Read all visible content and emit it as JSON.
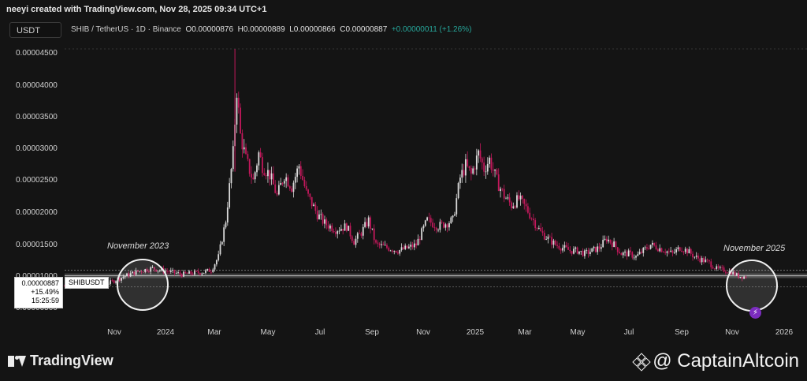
{
  "attribution": "neeyi created with TradingView.com, Nov 28, 2025 09:34 UTC+1",
  "currency_button": "USDT",
  "legend": {
    "symbol": "SHIB / TetherUS · 1D · Binance",
    "open": "O0.00000876",
    "high": "H0.00000889",
    "low": "L0.00000866",
    "close": "C0.00000887",
    "change": "+0.00000011 (+1.26%)"
  },
  "price_label": {
    "price": "0.00000887",
    "change_pct": "+15.49%",
    "countdown": "15:25:59",
    "symbol": "SHIBUSDT"
  },
  "annotations": {
    "left": "November 2023",
    "right": "November 2025"
  },
  "brand": "TradingView",
  "watermark": "@ CaptainAltcoin",
  "colors": {
    "up": "#d9d9d9",
    "down": "#c2185b",
    "background": "#141414"
  },
  "chart_data": {
    "type": "candlestick",
    "series_name": "SHIBUSDT",
    "y_ticks": [
      "0.00000500",
      "0.00001000",
      "0.00001500",
      "0.00002000",
      "0.00002500",
      "0.00003000",
      "0.00003500",
      "0.00004000",
      "0.00004500"
    ],
    "x_ticks": [
      "Nov",
      "2024",
      "Mar",
      "May",
      "Jul",
      "Sep",
      "Nov",
      "2025",
      "Mar",
      "May",
      "Jul",
      "Sep",
      "Nov",
      "2026"
    ],
    "ylim": [
      3.5e-06,
      4.62e-05
    ],
    "current_price": 8.87e-06,
    "close_path": [
      [
        0,
        7.2e-06
      ],
      [
        10,
        7.5e-06
      ],
      [
        18,
        7.1e-06
      ],
      [
        25,
        7.8e-06
      ],
      [
        32,
        8.7e-06
      ],
      [
        38,
        9.4e-06
      ],
      [
        43,
        9.8e-06
      ],
      [
        48,
        1.01e-05
      ],
      [
        52,
        9.8e-06
      ],
      [
        58,
        9.5e-06
      ],
      [
        64,
        9.1e-06
      ],
      [
        70,
        9.3e-06
      ],
      [
        76,
        9.5e-06
      ],
      [
        80,
        9.8e-06
      ],
      [
        84,
        1.2e-05
      ],
      [
        88,
        1.8e-05
      ],
      [
        92,
        2.9e-05
      ],
      [
        94,
        3.95e-05
      ],
      [
        96,
        3.2e-05
      ],
      [
        99,
        2.8e-05
      ],
      [
        103,
        2.45e-05
      ],
      [
        106,
        2.9e-05
      ],
      [
        108,
        2.7e-05
      ],
      [
        112,
        2.55e-05
      ],
      [
        116,
        2.2e-05
      ],
      [
        120,
        2.55e-05
      ],
      [
        124,
        2.35e-05
      ],
      [
        128,
        2.7e-05
      ],
      [
        132,
        2.25e-05
      ],
      [
        138,
        1.9e-05
      ],
      [
        142,
        1.75e-05
      ],
      [
        148,
        1.65e-05
      ],
      [
        154,
        1.7e-05
      ],
      [
        158,
        1.45e-05
      ],
      [
        162,
        1.6e-05
      ],
      [
        166,
        1.8e-05
      ],
      [
        170,
        1.4e-05
      ],
      [
        176,
        1.35e-05
      ],
      [
        182,
        1.3e-05
      ],
      [
        188,
        1.35e-05
      ],
      [
        192,
        1.4e-05
      ],
      [
        198,
        1.8e-05
      ],
      [
        204,
        1.7e-05
      ],
      [
        208,
        1.75e-05
      ],
      [
        212,
        1.8e-05
      ],
      [
        216,
        2.5e-05
      ],
      [
        219,
        2.7e-05
      ],
      [
        222,
        2.55e-05
      ],
      [
        226,
        2.9e-05
      ],
      [
        229,
        2.65e-05
      ],
      [
        232,
        2.8e-05
      ],
      [
        236,
        2.45e-05
      ],
      [
        240,
        2.2e-05
      ],
      [
        244,
        2.05e-05
      ],
      [
        248,
        2.15e-05
      ],
      [
        252,
        2e-05
      ],
      [
        256,
        1.8e-05
      ],
      [
        260,
        1.6e-05
      ],
      [
        264,
        1.5e-05
      ],
      [
        268,
        1.4e-05
      ],
      [
        272,
        1.35e-05
      ],
      [
        276,
        1.3e-05
      ],
      [
        280,
        1.3e-05
      ],
      [
        284,
        1.25e-05
      ],
      [
        288,
        1.3e-05
      ],
      [
        292,
        1.35e-05
      ],
      [
        296,
        1.5e-05
      ],
      [
        300,
        1.4e-05
      ],
      [
        304,
        1.25e-05
      ],
      [
        308,
        1.25e-05
      ],
      [
        312,
        1.2e-05
      ],
      [
        316,
        1.3e-05
      ],
      [
        320,
        1.4e-05
      ],
      [
        324,
        1.35e-05
      ],
      [
        328,
        1.3e-05
      ],
      [
        332,
        1.25e-05
      ],
      [
        336,
        1.35e-05
      ],
      [
        340,
        1.3e-05
      ],
      [
        344,
        1.2e-05
      ],
      [
        348,
        1.15e-05
      ],
      [
        352,
        1.1e-05
      ],
      [
        356,
        1e-05
      ],
      [
        360,
        9.8e-06
      ],
      [
        364,
        9.5e-06
      ],
      [
        368,
        8.8e-06
      ],
      [
        372,
        8.7e-06
      ]
    ],
    "x_day_range": [
      0,
      380
    ]
  }
}
